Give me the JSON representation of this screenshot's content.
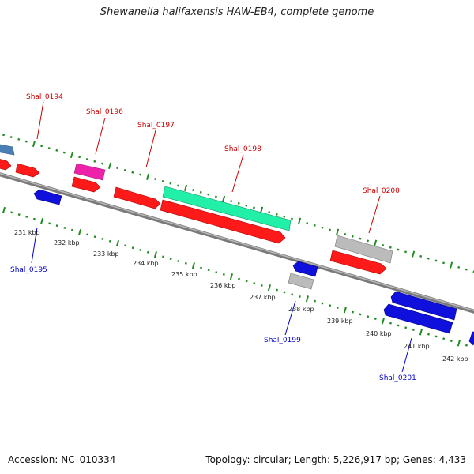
{
  "title": "Shewanella halifaxensis HAW-EB4, complete genome",
  "footer": {
    "accession": "Accession: NC_010334",
    "summary": "Topology: circular; Length: 5,226,917 bp; Genes: 4,433"
  },
  "colors": {
    "backbone": "#888888",
    "forward_ticks": "#228b22",
    "reverse_ticks": "#228b22",
    "label_forward": "#cc0000",
    "label_reverse": "#0000cc",
    "gene_red": "#ff1a1a",
    "gene_blue": "#1010dd",
    "gene_steel": "#4a7fb5",
    "gene_magenta": "#ee22aa",
    "gene_teal": "#22f0a8",
    "gene_gray": "#bbbbbb"
  },
  "scale_labels": [
    "231 kbp",
    "232 kbp",
    "233 kbp",
    "234 kbp",
    "235 kbp",
    "236 kbp",
    "237 kbp",
    "238 kbp",
    "239 kbp",
    "240 kbp",
    "241 kbp",
    "242 kbp"
  ],
  "gene_labels": {
    "forward": [
      "Shal_0194",
      "Shal_0196",
      "Shal_0197",
      "Shal_0198",
      "Shal_0200"
    ],
    "reverse": [
      "Shal_0195",
      "Shal_0199",
      "Shal_0201"
    ]
  }
}
